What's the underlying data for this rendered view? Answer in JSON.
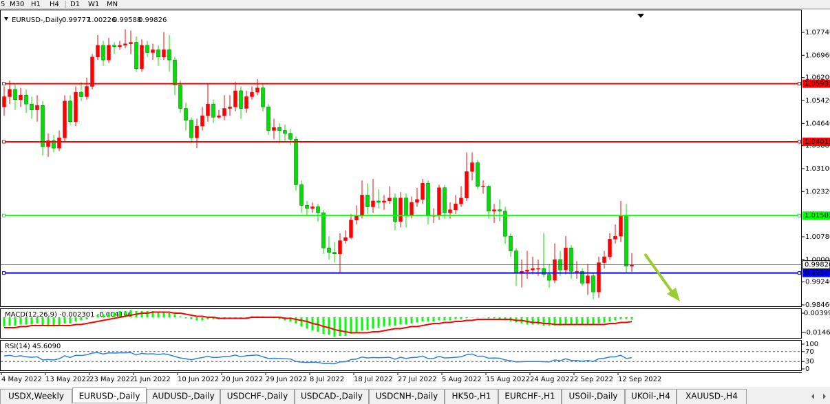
{
  "toolbar": [
    "5",
    "M30",
    "H1",
    "H4",
    "D1",
    "W1",
    "MN"
  ],
  "tabs": [
    "USDX,Weekly",
    "EURUSD-,Daily",
    "AUDUSD-,Daily",
    "USDCHF-,Daily",
    "USDCAD-,Daily",
    "USDCNH-,Daily",
    "HK50-,H1",
    "EURCHF-,H1",
    "USOil-,Daily",
    "UKOil-,H4",
    "XAUUSD-,H4"
  ],
  "active_tab": 1,
  "chart_data": {
    "type": "candlestick",
    "title": "EURUSD-,Daily",
    "categories": [
      "4 May 2022",
      null,
      null,
      null,
      null,
      null,
      null,
      null,
      "13 May 2022",
      null,
      null,
      null,
      null,
      null,
      null,
      null,
      "23 May 2022",
      null,
      null,
      null,
      null,
      null,
      null,
      null,
      "1 Jun 2022",
      null,
      null,
      null,
      null,
      null,
      null,
      null,
      "10 Jun 2022",
      null,
      null,
      null,
      null,
      null,
      null,
      null,
      "20 Jun 2022",
      null,
      null,
      null,
      null,
      null,
      null,
      null,
      "29 Jun 2022",
      null,
      null,
      null,
      null,
      null,
      null,
      null,
      "8 Jul 2022",
      null,
      null,
      null,
      null,
      null,
      null,
      null,
      "18 Jul 2022",
      null,
      null,
      null,
      null,
      null,
      null,
      null,
      "27 Jul 2022",
      null,
      null,
      null,
      null,
      null,
      null,
      null,
      "5 Aug 2022",
      null,
      null,
      null,
      null,
      null,
      null,
      null,
      "15 Aug 2022",
      null,
      null,
      null,
      null,
      null,
      null,
      null,
      "24 Aug 2022",
      null,
      null,
      null,
      null,
      null,
      null,
      null,
      "2 Sep 2022",
      null,
      null,
      null,
      null,
      null,
      null,
      null,
      "12 Sep 2022",
      null,
      null
    ],
    "bars": [
      [
        1.052,
        1.059,
        1.049,
        1.0555
      ],
      [
        1.0555,
        1.061,
        1.053,
        1.058
      ],
      [
        1.058,
        1.06,
        1.051,
        1.0545
      ],
      [
        1.0545,
        1.0585,
        1.052,
        1.056
      ],
      [
        1.056,
        1.058,
        1.05,
        1.053
      ],
      [
        1.053,
        1.0555,
        1.048,
        1.051
      ],
      [
        1.051,
        1.056,
        1.047,
        1.0525
      ],
      [
        1.0525,
        1.054,
        1.0355,
        1.0385
      ],
      [
        1.0385,
        1.043,
        1.035,
        1.0405
      ],
      [
        1.0405,
        1.0425,
        1.0365,
        1.038
      ],
      [
        1.038,
        1.044,
        1.037,
        1.0415
      ],
      [
        1.0415,
        1.056,
        1.04,
        1.054
      ],
      [
        1.054,
        1.056,
        1.046,
        1.047
      ],
      [
        1.047,
        1.059,
        1.0455,
        1.057
      ],
      [
        1.057,
        1.0605,
        1.054,
        1.0555
      ],
      [
        1.0555,
        1.062,
        1.0545,
        1.059
      ],
      [
        1.059,
        1.07,
        1.058,
        1.069
      ],
      [
        1.069,
        1.0765,
        1.068,
        1.073
      ],
      [
        1.073,
        1.0745,
        1.066,
        1.068
      ],
      [
        1.068,
        1.0755,
        1.067,
        1.073
      ],
      [
        1.073,
        1.074,
        1.07,
        1.0725
      ],
      [
        1.0725,
        1.0745,
        1.0715,
        1.073
      ],
      [
        1.073,
        1.0785,
        1.072,
        1.0735
      ],
      [
        1.0735,
        1.078,
        1.07,
        1.074
      ],
      [
        1.074,
        1.076,
        1.064,
        1.065
      ],
      [
        1.065,
        1.075,
        1.064,
        1.073
      ],
      [
        1.073,
        1.0745,
        1.069,
        1.0705
      ],
      [
        1.0705,
        1.0735,
        1.068,
        1.0715
      ],
      [
        1.0715,
        1.073,
        1.066,
        1.069
      ],
      [
        1.069,
        1.0775,
        1.068,
        1.0715
      ],
      [
        1.0715,
        1.0765,
        1.064,
        1.068
      ],
      [
        1.068,
        1.069,
        1.056,
        1.0595
      ],
      [
        1.0595,
        1.061,
        1.05,
        1.0515
      ],
      [
        1.0515,
        1.0535,
        1.044,
        1.0475
      ],
      [
        1.0475,
        1.0485,
        1.0395,
        1.0415
      ],
      [
        1.0415,
        1.048,
        1.038,
        1.0455
      ],
      [
        1.0455,
        1.052,
        1.044,
        1.049
      ],
      [
        1.049,
        1.06,
        1.047,
        1.053
      ],
      [
        1.053,
        1.0545,
        1.0465,
        1.0485
      ],
      [
        1.0485,
        1.051,
        1.048,
        1.049
      ],
      [
        1.049,
        1.056,
        1.0475,
        1.0515
      ],
      [
        1.0515,
        1.056,
        1.049,
        1.052
      ],
      [
        1.052,
        1.0605,
        1.0505,
        1.0575
      ],
      [
        1.0575,
        1.059,
        1.048,
        1.0515
      ],
      [
        1.0515,
        1.0575,
        1.05,
        1.0555
      ],
      [
        1.0555,
        1.059,
        1.0545,
        1.057
      ],
      [
        1.057,
        1.0615,
        1.056,
        1.0585
      ],
      [
        1.0585,
        1.06,
        1.0505,
        1.052
      ],
      [
        1.052,
        1.053,
        1.0425,
        1.044
      ],
      [
        1.044,
        1.048,
        1.041,
        1.045
      ],
      [
        1.045,
        1.0465,
        1.0395,
        1.044
      ],
      [
        1.044,
        1.046,
        1.0405,
        1.043
      ],
      [
        1.043,
        1.0445,
        1.039,
        1.041
      ],
      [
        1.041,
        1.042,
        1.0235,
        1.0255
      ],
      [
        1.0255,
        1.027,
        1.016,
        1.0185
      ],
      [
        1.0185,
        1.02,
        1.015,
        1.0175
      ],
      [
        1.0175,
        1.0195,
        1.016,
        1.018
      ],
      [
        1.018,
        1.019,
        1.013,
        1.016
      ],
      [
        1.016,
        1.017,
        1.002,
        1.004
      ],
      [
        1.004,
        1.008,
        1.0,
        1.0025
      ],
      [
        1.0025,
        1.006,
        0.999,
        1.002
      ],
      [
        1.002,
        1.009,
        0.9955,
        1.0065
      ],
      [
        1.0065,
        1.01,
        1.0055,
        1.0075
      ],
      [
        1.0075,
        1.0155,
        1.007,
        1.0135
      ],
      [
        1.0135,
        1.0185,
        1.012,
        1.015
      ],
      [
        1.015,
        1.027,
        1.014,
        1.022
      ],
      [
        1.022,
        1.026,
        1.0155,
        1.018
      ],
      [
        1.018,
        1.0275,
        1.016,
        1.02
      ],
      [
        1.02,
        1.024,
        1.0175,
        1.0195
      ],
      [
        1.0195,
        1.022,
        1.017,
        1.02
      ],
      [
        1.02,
        1.025,
        1.019,
        1.021
      ],
      [
        1.021,
        1.0225,
        1.01,
        1.013
      ],
      [
        1.013,
        1.023,
        1.011,
        1.021
      ],
      [
        1.021,
        1.0225,
        1.011,
        1.015
      ],
      [
        1.015,
        1.0215,
        1.014,
        1.0195
      ],
      [
        1.0195,
        1.0245,
        1.018,
        1.0205
      ],
      [
        1.0205,
        1.0275,
        1.019,
        1.026
      ],
      [
        1.026,
        1.027,
        1.012,
        1.015
      ],
      [
        1.015,
        1.0175,
        1.0125,
        1.015
      ],
      [
        1.015,
        1.0255,
        1.0135,
        1.0245
      ],
      [
        1.0245,
        1.0255,
        1.014,
        1.016
      ],
      [
        1.016,
        1.0195,
        1.014,
        1.017
      ],
      [
        1.017,
        1.022,
        1.0155,
        1.019
      ],
      [
        1.019,
        1.025,
        1.018,
        1.021
      ],
      [
        1.021,
        1.0365,
        1.02,
        1.03
      ],
      [
        1.03,
        1.0365,
        1.027,
        1.033
      ],
      [
        1.033,
        1.034,
        1.024,
        1.025
      ],
      [
        1.025,
        1.027,
        1.0225,
        1.025
      ],
      [
        1.025,
        1.0255,
        1.014,
        1.0165
      ],
      [
        1.0165,
        1.019,
        1.0125,
        1.017
      ],
      [
        1.017,
        1.0205,
        1.013,
        1.0165
      ],
      [
        1.0165,
        1.018,
        1.0055,
        1.008
      ],
      [
        1.008,
        1.009,
        1.001,
        1.003
      ],
      [
        1.003,
        1.004,
        0.991,
        0.9955
      ],
      [
        0.9955,
        1.0,
        0.9905,
        0.996
      ],
      [
        0.996,
        1.003,
        0.9935,
        0.9965
      ],
      [
        0.9965,
        1.001,
        0.995,
        0.997
      ],
      [
        0.997,
        1.0,
        0.9945,
        0.997
      ],
      [
        0.997,
        1.009,
        0.994,
        0.995
      ],
      [
        0.995,
        0.9985,
        0.9905,
        0.993
      ],
      [
        0.993,
        1.0055,
        0.992,
        1.0
      ],
      [
        1.0,
        1.003,
        0.9945,
        0.9965
      ],
      [
        0.9965,
        1.008,
        0.995,
        1.004
      ],
      [
        1.004,
        1.005,
        0.9935,
        0.996
      ],
      [
        0.996,
        0.9995,
        0.9935,
        0.996
      ],
      [
        0.996,
        0.997,
        0.991,
        0.992
      ],
      [
        0.992,
        0.9985,
        0.988,
        0.9945
      ],
      [
        0.9945,
        0.9955,
        0.9865,
        0.989
      ],
      [
        0.989,
        1.001,
        0.987,
        0.999
      ],
      [
        0.999,
        1.003,
        0.997,
        1.001
      ],
      [
        1.001,
        1.009,
        1.0,
        1.007
      ],
      [
        1.007,
        1.012,
        1.0055,
        1.008
      ],
      [
        1.008,
        1.02,
        1.006,
        1.015
      ],
      [
        1.015,
        1.019,
        0.9955,
        0.9978
      ],
      [
        0.99777,
        1.00226,
        0.99588,
        0.99826
      ]
    ],
    "up_color": "#ff0000",
    "down_color": "#00e000",
    "ylim": [
      0.98413,
      1.0842
    ],
    "yticks": [
      {
        "value": 1.0774,
        "label": "1.07740"
      },
      {
        "value": 1.0696,
        "label": "1.06960"
      },
      {
        "value": 1.062,
        "label": "1.06200"
      },
      {
        "value": 1.0542,
        "label": "1.05420"
      },
      {
        "value": 1.0464,
        "label": "1.04640"
      },
      {
        "value": 1.0388,
        "label": "1.03880"
      },
      {
        "value": 1.031,
        "label": "1.03100"
      },
      {
        "value": 1.0232,
        "label": "1.02320"
      },
      {
        "value": 1.0078,
        "label": "1.00780"
      },
      {
        "value": 1.0,
        "label": "1.00000"
      },
      {
        "value": 0.9924,
        "label": "0.99240"
      },
      {
        "value": 0.9846,
        "label": "0.98460"
      }
    ],
    "levels": [
      {
        "value": 1.05992,
        "color": "#ff0000"
      },
      {
        "value": 1.04015,
        "color": "#ff0000"
      },
      {
        "value": 1.01502,
        "color": "#00ff00"
      },
      {
        "value": 0.99547,
        "color": "#0000ff"
      }
    ],
    "macd": {
      "label": "MACD(12,26,9) -0.002301 -0.004166",
      "main_color": "#00ff00",
      "signal_color": "#ff0000",
      "ylim": [
        -0.0207,
        0.008
      ],
      "yticks": [
        0.00399,
        -0.01469
      ],
      "main": [
        -0.009,
        -0.008,
        -0.008,
        -0.007,
        -0.007,
        -0.007,
        -0.006,
        -0.008,
        -0.009,
        -0.009,
        -0.008,
        -0.006,
        -0.006,
        -0.004,
        -0.003,
        -0.002,
        0.0,
        0.002,
        0.003,
        0.004,
        0.005,
        0.006,
        0.006,
        0.007,
        0.006,
        0.006,
        0.006,
        0.006,
        0.005,
        0.005,
        0.004,
        0.003,
        0.001,
        -0.001,
        -0.002,
        -0.003,
        -0.003,
        -0.002,
        -0.002,
        -0.002,
        -0.002,
        -0.001,
        0.0,
        0.0,
        0.0,
        0.001,
        0.001,
        0.001,
        0.0,
        -0.001,
        -0.002,
        -0.003,
        -0.004,
        -0.006,
        -0.009,
        -0.011,
        -0.013,
        -0.014,
        -0.016,
        -0.017,
        -0.019,
        -0.018,
        -0.018,
        -0.016,
        -0.015,
        -0.013,
        -0.012,
        -0.011,
        -0.01,
        -0.009,
        -0.008,
        -0.008,
        -0.007,
        -0.007,
        -0.006,
        -0.005,
        -0.004,
        -0.004,
        -0.004,
        -0.003,
        -0.003,
        -0.003,
        -0.002,
        -0.002,
        -0.001,
        0.0,
        0.0,
        0.0,
        -0.001,
        -0.001,
        -0.002,
        -0.003,
        -0.004,
        -0.005,
        -0.006,
        -0.007,
        -0.007,
        -0.007,
        -0.008,
        -0.008,
        -0.008,
        -0.008,
        -0.007,
        -0.007,
        -0.007,
        -0.007,
        -0.007,
        -0.007,
        -0.006,
        -0.005,
        -0.004,
        -0.003,
        -0.002,
        -0.002,
        -0.002301
      ],
      "signal": [
        -0.01,
        -0.01,
        -0.01,
        -0.009,
        -0.009,
        -0.008,
        -0.008,
        -0.008,
        -0.008,
        -0.008,
        -0.008,
        -0.008,
        -0.008,
        -0.007,
        -0.007,
        -0.006,
        -0.005,
        -0.004,
        -0.003,
        -0.002,
        -0.001,
        0.0,
        0.001,
        0.002,
        0.003,
        0.004,
        0.004,
        0.005,
        0.005,
        0.005,
        0.005,
        0.004,
        0.004,
        0.003,
        0.002,
        0.001,
        0.001,
        0.0,
        0.0,
        -0.001,
        -0.001,
        -0.001,
        -0.001,
        -0.001,
        -0.001,
        0.0,
        0.0,
        0.0,
        0.0,
        0.0,
        0.0,
        -0.001,
        -0.001,
        -0.002,
        -0.003,
        -0.004,
        -0.006,
        -0.007,
        -0.009,
        -0.01,
        -0.012,
        -0.013,
        -0.014,
        -0.015,
        -0.015,
        -0.015,
        -0.015,
        -0.014,
        -0.014,
        -0.013,
        -0.012,
        -0.011,
        -0.011,
        -0.01,
        -0.009,
        -0.009,
        -0.008,
        -0.007,
        -0.006,
        -0.006,
        -0.005,
        -0.005,
        -0.004,
        -0.004,
        -0.003,
        -0.003,
        -0.002,
        -0.002,
        -0.002,
        -0.002,
        -0.002,
        -0.002,
        -0.002,
        -0.003,
        -0.003,
        -0.004,
        -0.005,
        -0.005,
        -0.006,
        -0.006,
        -0.007,
        -0.007,
        -0.007,
        -0.007,
        -0.007,
        -0.007,
        -0.007,
        -0.007,
        -0.007,
        -0.007,
        -0.006,
        -0.006,
        -0.005,
        -0.005,
        -0.004166
      ]
    },
    "rsi": {
      "label": "RSI(14) 45.6090",
      "color": "#2f80d8",
      "ylim": [
        0,
        100
      ],
      "yticks": [
        100,
        70,
        30,
        0
      ],
      "values": [
        52,
        55,
        50,
        53,
        49,
        47,
        49,
        36,
        38,
        36,
        41,
        53,
        46,
        55,
        54,
        57,
        64,
        66,
        60,
        65,
        64,
        65,
        65,
        66,
        56,
        63,
        60,
        61,
        58,
        61,
        57,
        50,
        44,
        41,
        37,
        42,
        46,
        51,
        46,
        47,
        50,
        51,
        56,
        49,
        53,
        55,
        56,
        49,
        42,
        43,
        42,
        41,
        40,
        30,
        27,
        26,
        27,
        26,
        22,
        22,
        21,
        28,
        29,
        38,
        40,
        48,
        44,
        46,
        45,
        46,
        47,
        39,
        47,
        42,
        46,
        47,
        52,
        42,
        42,
        51,
        44,
        45,
        47,
        49,
        57,
        60,
        51,
        51,
        43,
        44,
        43,
        36,
        33,
        28,
        29,
        30,
        30,
        30,
        29,
        28,
        36,
        33,
        41,
        34,
        34,
        31,
        34,
        30,
        41,
        43,
        48,
        49,
        55,
        42,
        45.609
      ]
    }
  }
}
